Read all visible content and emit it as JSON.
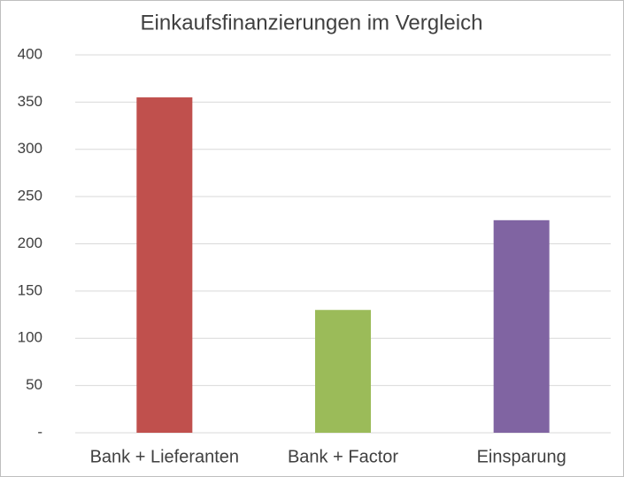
{
  "chart_data": {
    "type": "bar",
    "title": "Einkaufsfinanzierungen im Vergleich",
    "categories": [
      "Bank + Lieferanten",
      "Bank + Factor",
      "Einsparung"
    ],
    "values": [
      355,
      130,
      225
    ],
    "colors": [
      "#c0504d",
      "#9bbb59",
      "#8064a2"
    ],
    "ylim": [
      0,
      400
    ],
    "yticks": [
      {
        "value": 0,
        "label": "-"
      },
      50,
      100,
      150,
      200,
      250,
      300,
      350,
      400
    ],
    "grid": true
  }
}
